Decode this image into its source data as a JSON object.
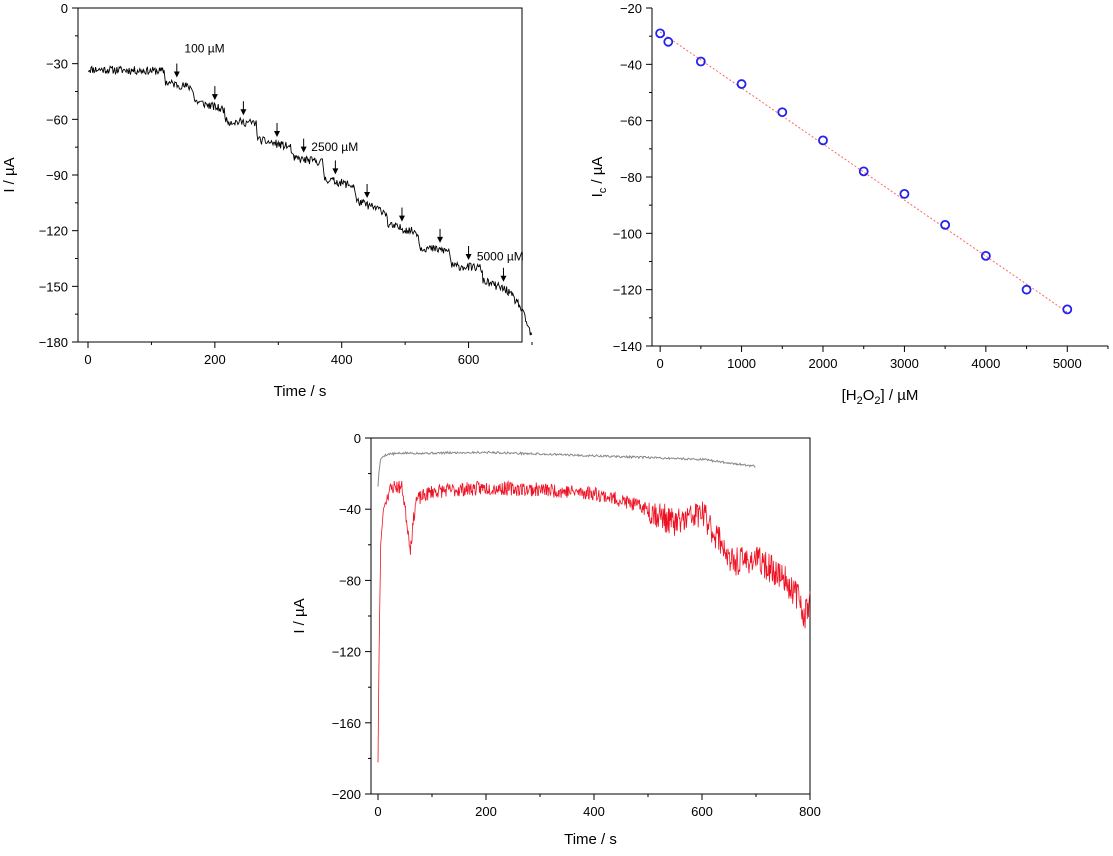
{
  "figure": {
    "arrow_marker_icon": "down-arrow-icon"
  },
  "chart_data": [
    {
      "type": "line",
      "xlabel": "Time / s",
      "ylabel": "I / µA",
      "xlim": [
        0,
        700
      ],
      "ylim": [
        -180,
        0
      ],
      "xticks": [
        0,
        200,
        400,
        600
      ],
      "yticks": [
        0,
        -30,
        -60,
        -90,
        -120,
        -150,
        -180
      ],
      "grid": false,
      "series": [
        {
          "color": "#000000",
          "x": [
            0,
            120,
            122,
            165,
            168,
            215,
            218,
            265,
            268,
            320,
            323,
            370,
            373,
            420,
            423,
            470,
            473,
            520,
            523,
            570,
            573,
            620,
            623,
            660,
            680,
            690,
            700
          ],
          "y": [
            -33,
            -34,
            -40,
            -43,
            -50,
            -55,
            -61,
            -62,
            -71,
            -75,
            -81,
            -83,
            -92,
            -96,
            -104,
            -110,
            -117,
            -121,
            -129,
            -131,
            -139,
            -140,
            -147,
            -152,
            -160,
            -168,
            -178
          ]
        }
      ],
      "arrows_x": [
        140,
        200,
        245,
        298,
        340,
        390,
        440,
        495,
        555,
        600,
        655
      ],
      "annotations": [
        {
          "text": "100 µM",
          "x": 152,
          "y": -24
        },
        {
          "text": "2500 µM",
          "x": 352,
          "y": -77
        },
        {
          "text": "5000 µM",
          "x": 613,
          "y": -136
        }
      ]
    },
    {
      "type": "scatter",
      "xlabel": "[H2O2] / µM",
      "xlabel_parts": {
        "open": "[H",
        "sub1": "2",
        "mid": "O",
        "sub2": "2",
        "close": "] / µM"
      },
      "ylabel": "Ic / µA",
      "ylabel_parts": {
        "main": "I",
        "sub": "c",
        "rest": " / µA"
      },
      "xlim": [
        -100,
        5500
      ],
      "ylim": [
        -140,
        -20
      ],
      "xticks": [
        0,
        1000,
        2000,
        3000,
        4000,
        5000
      ],
      "yticks": [
        -20,
        -40,
        -60,
        -80,
        -100,
        -120,
        -140
      ],
      "grid": false,
      "series": [
        {
          "marker_color": "#2222ee",
          "fit_color": "#ff6666",
          "x": [
            0,
            100,
            500,
            1000,
            1500,
            2000,
            2500,
            3000,
            3500,
            4000,
            4500,
            5000
          ],
          "y": [
            -29,
            -32,
            -39,
            -47,
            -57,
            -67,
            -78,
            -86,
            -97,
            -108,
            -120,
            -127
          ],
          "fit": {
            "x": [
              0,
              5000
            ],
            "y": [
              -28.5,
              -128
            ]
          }
        }
      ]
    },
    {
      "type": "line",
      "xlabel": "Time / s",
      "ylabel": "I / µA",
      "xlim": [
        0,
        800
      ],
      "ylim": [
        -200,
        0
      ],
      "xticks": [
        0,
        200,
        400,
        600,
        800
      ],
      "yticks": [
        0,
        -40,
        -80,
        -120,
        -160,
        -200
      ],
      "grid": false,
      "series": [
        {
          "color": "#888888",
          "x": [
            0,
            2,
            5,
            10,
            20,
            50,
            100,
            200,
            300,
            400,
            500,
            600,
            650,
            700
          ],
          "y": [
            -27,
            -18,
            -12,
            -10,
            -9,
            -8.5,
            -8.5,
            -8,
            -9,
            -10,
            -11,
            -12,
            -14,
            -16
          ]
        },
        {
          "color": "#ee1122",
          "x": [
            0,
            2,
            5,
            10,
            20,
            30,
            45,
            60,
            70,
            100,
            200,
            300,
            400,
            450,
            500,
            550,
            600,
            620,
            640,
            650,
            700,
            750,
            780,
            790,
            800
          ],
          "y": [
            -182,
            -120,
            -60,
            -40,
            -30,
            -27,
            -28,
            -62,
            -35,
            -30,
            -28,
            -29,
            -31,
            -35,
            -40,
            -48,
            -42,
            -52,
            -60,
            -70,
            -68,
            -78,
            -90,
            -100,
            -90
          ]
        }
      ]
    }
  ]
}
